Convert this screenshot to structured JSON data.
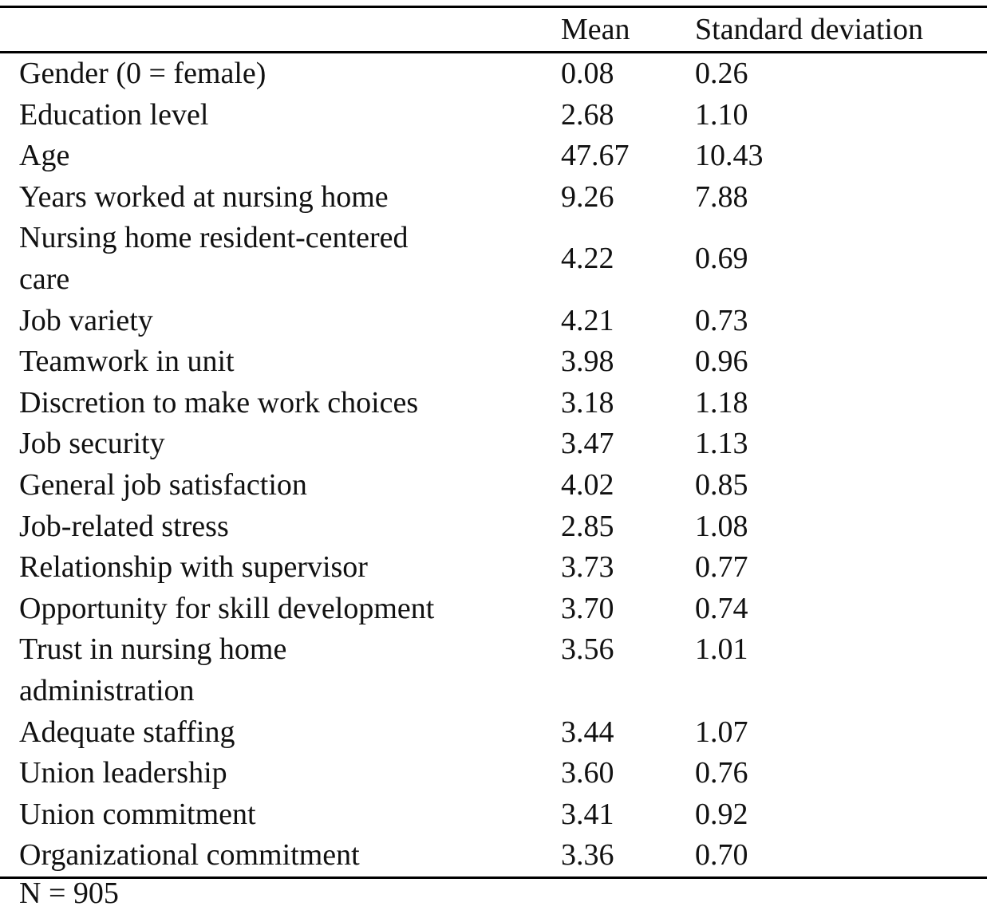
{
  "table": {
    "header": [
      "Mean",
      "Standard deviation"
    ],
    "rows": [
      [
        "Gender (0 = female)",
        "0.08",
        "0.26"
      ],
      [
        "Education level",
        "2.68",
        "1.10"
      ],
      [
        "Age",
        "47.67",
        "10.43"
      ],
      [
        "Years worked at nursing home",
        "9.26",
        "7.88"
      ],
      [
        "Nursing home resident-centered care",
        "4.22",
        "0.69"
      ],
      [
        "Job variety",
        "4.21",
        "0.73"
      ],
      [
        "Teamwork in unit",
        "3.98",
        "0.96"
      ],
      [
        "Discretion to make work choices",
        "3.18",
        "1.18"
      ],
      [
        "Job security",
        "3.47",
        "1.13"
      ],
      [
        "General job satisfaction",
        "4.02",
        "0.85"
      ],
      [
        "Job-related stress",
        "2.85",
        "1.08"
      ],
      [
        "Relationship with supervisor",
        "3.73",
        "0.77"
      ],
      [
        "Opportunity for skill development",
        "3.70",
        "0.74"
      ],
      [
        "Trust in nursing home administration",
        "3.56",
        "1.01"
      ],
      [
        "Adequate staffing",
        "3.44",
        "1.07"
      ],
      [
        "Union leadership",
        "3.60",
        "0.76"
      ],
      [
        "Union commitment",
        "3.41",
        "0.92"
      ],
      [
        "Organizational commitment",
        "3.36",
        "0.70"
      ]
    ],
    "note": "N = 905"
  }
}
